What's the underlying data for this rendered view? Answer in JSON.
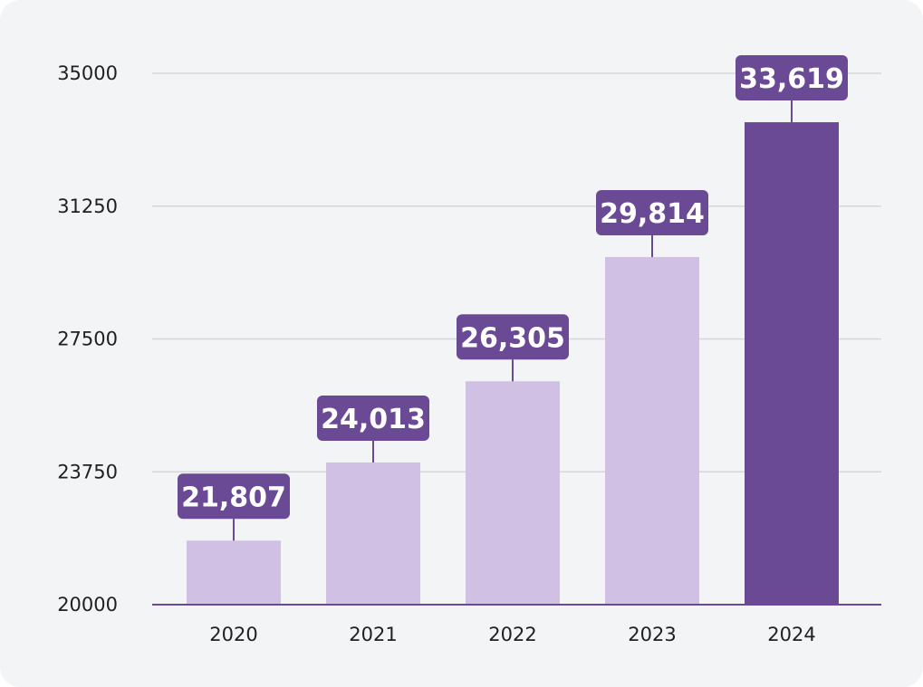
{
  "chart_data": {
    "type": "bar",
    "title": "",
    "xlabel": "",
    "ylabel": "",
    "categories": [
      "2020",
      "2021",
      "2022",
      "2023",
      "2024"
    ],
    "values": [
      21807,
      24013,
      26305,
      29814,
      33619
    ],
    "value_labels": [
      "21,807",
      "24,013",
      "26,305",
      "29,814",
      "33,619"
    ],
    "ylim": [
      20000,
      35000
    ],
    "yticks": [
      20000,
      23750,
      27500,
      31250,
      35000
    ],
    "ytick_labels": [
      "20000",
      "23750",
      "27500",
      "31250",
      "35000"
    ],
    "grid": true,
    "legend": "none",
    "highlighted_category": "2024",
    "colors": {
      "background": "#f3f4f6",
      "bar": "#cfc0e4",
      "bar_highlight": "#6a4a94",
      "label_bg": "#6a4a94",
      "label_text": "#ffffff",
      "grid": "#d6d6dc",
      "axis": "#6a4a94",
      "text": "#1f1f24"
    }
  }
}
